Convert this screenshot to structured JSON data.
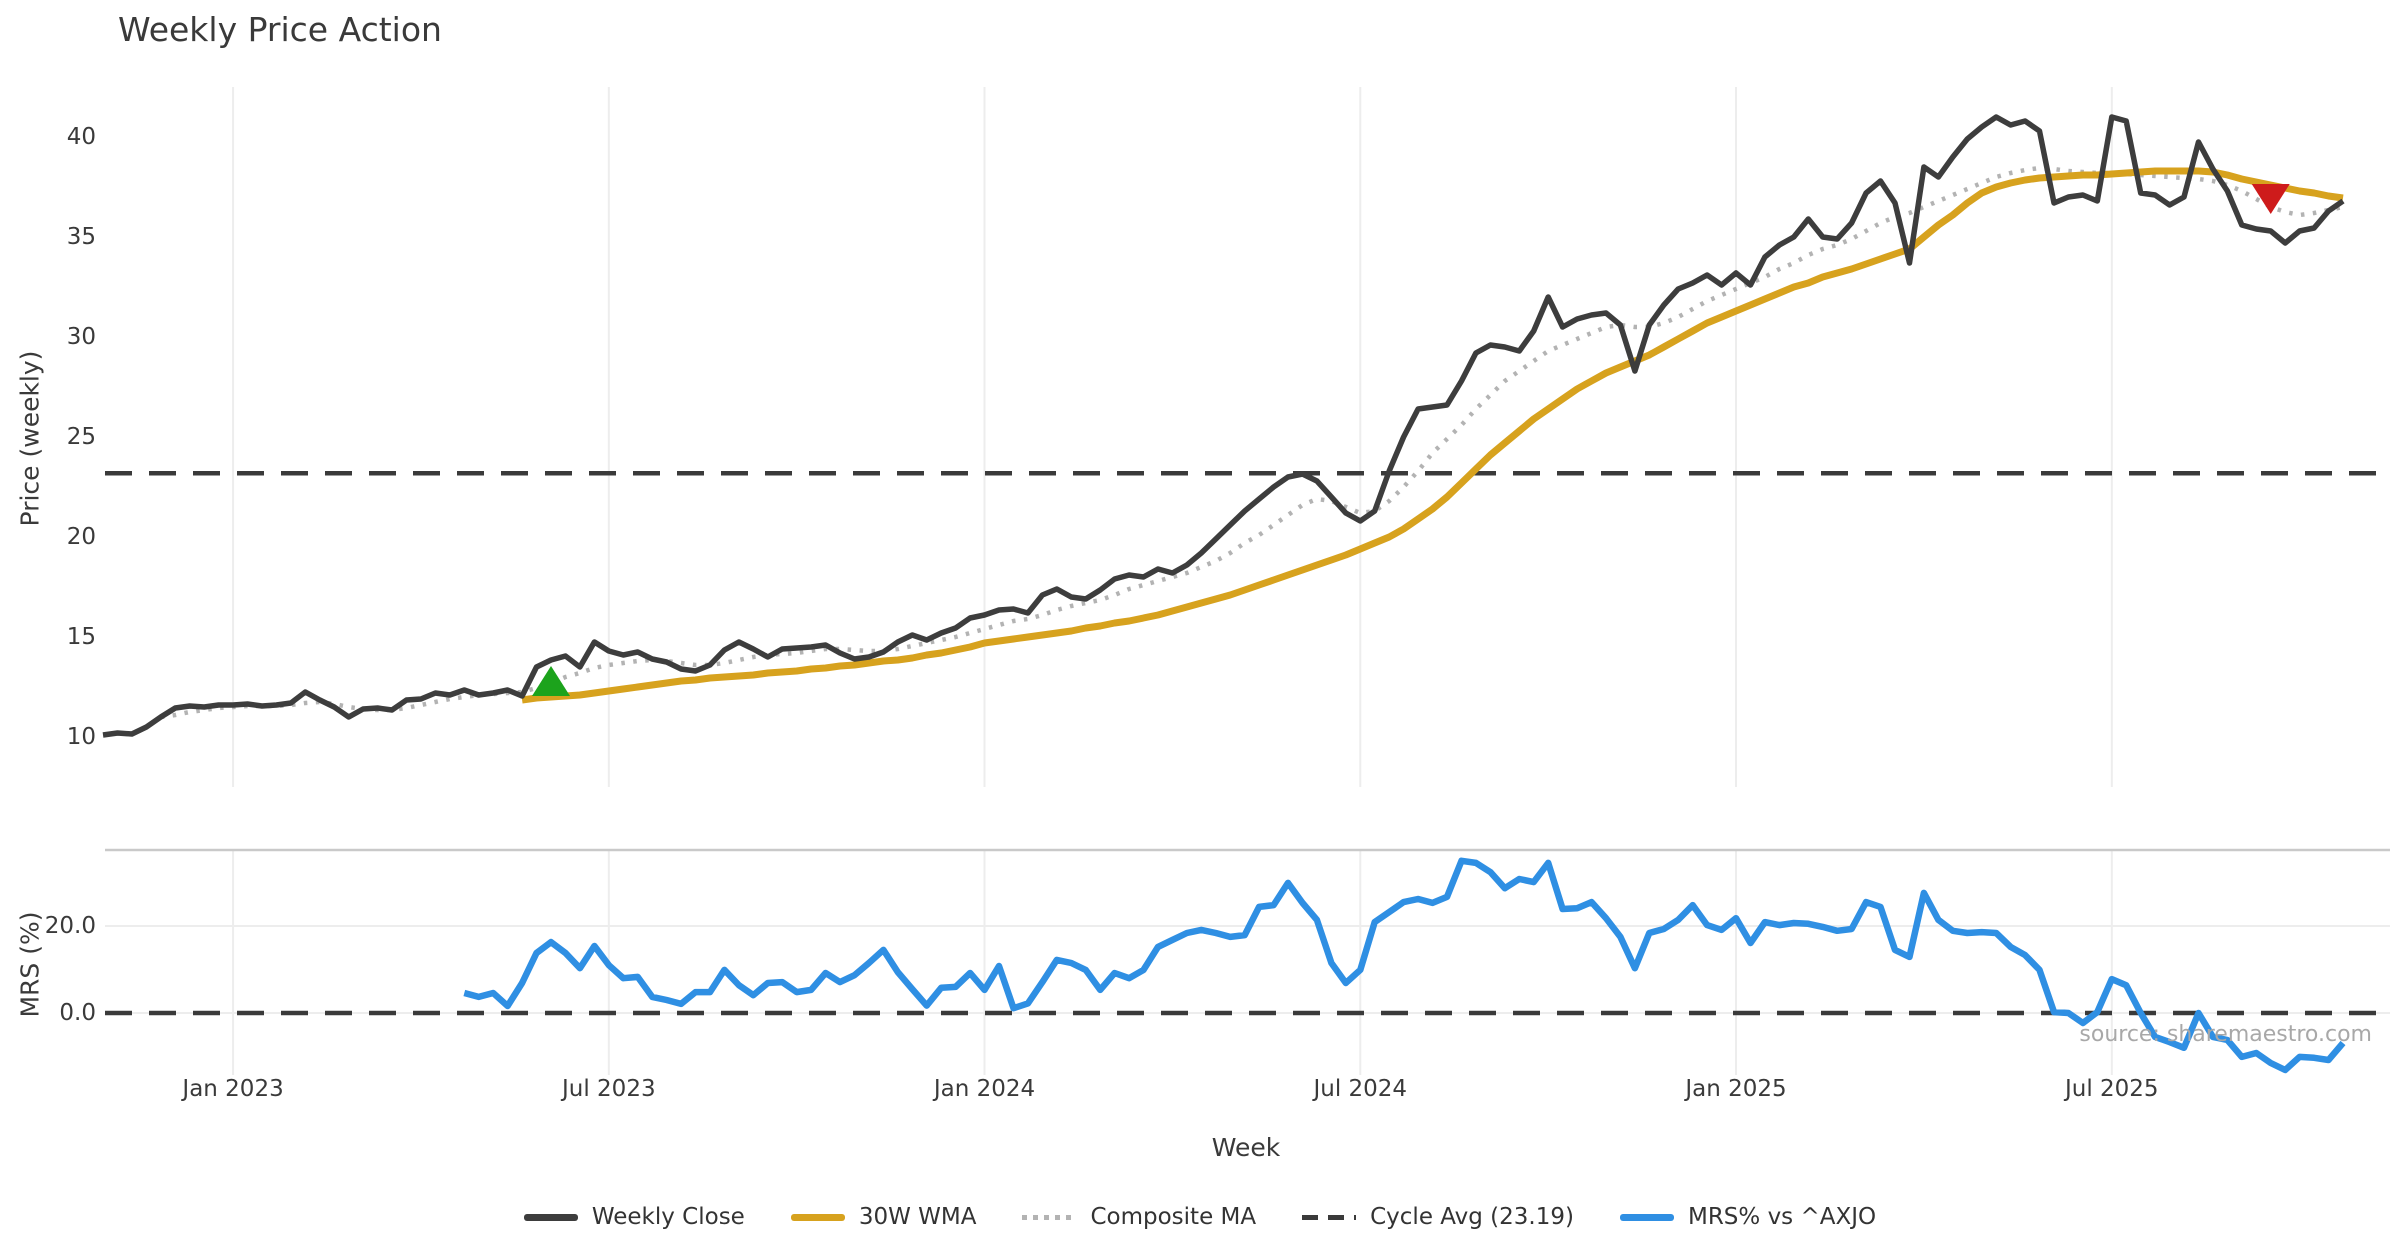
{
  "title": "Weekly Price Action",
  "source_note": "source: sharemaestro.com",
  "colors": {
    "weekly_close": "#3d3d3d",
    "wma": "#d7a21e",
    "composite": "#b3b3b3",
    "cycle_avg": "#3a3a3a",
    "mrs": "#2f8fe3",
    "grid": "#ededed",
    "panel_border": "#c9c9c9",
    "marker_up": "#1ca31c",
    "marker_down": "#ce1b1b",
    "tick_text": "#3a3a3a",
    "source_text": "#a8a8a8"
  },
  "chart_data": [
    {
      "type": "line",
      "panel": "price",
      "title": "Weekly Price Action",
      "xlabel": "Week",
      "ylabel": "Price (weekly)",
      "x_unit": "weeks",
      "x_total_weeks": 156,
      "x_tick_labels": [
        "Jan 2023",
        "Jul 2023",
        "Jan 2024",
        "Jul 2024",
        "Jan 2025",
        "Jul 2025"
      ],
      "x_tick_week_index": [
        9,
        35,
        61,
        87,
        113,
        139
      ],
      "y_ticks": [
        10,
        15,
        20,
        25,
        30,
        35,
        40
      ],
      "ylim": [
        7.5,
        42.5
      ],
      "grid": "vertical-only",
      "legend_position": "bottom-center",
      "series": [
        {
          "name": "Weekly Close",
          "start_week": 0,
          "values": [
            10.1,
            10.2,
            10.15,
            10.5,
            11.0,
            11.45,
            11.55,
            11.5,
            11.6,
            11.6,
            11.65,
            11.55,
            11.6,
            11.7,
            12.25,
            11.85,
            11.5,
            11.0,
            11.4,
            11.45,
            11.35,
            11.85,
            11.9,
            12.2,
            12.1,
            12.35,
            12.1,
            12.2,
            12.35,
            12.05,
            13.5,
            13.85,
            14.05,
            13.5,
            14.75,
            14.3,
            14.1,
            14.25,
            13.9,
            13.75,
            13.4,
            13.3,
            13.6,
            14.35,
            14.75,
            14.4,
            14.0,
            14.4,
            14.45,
            14.5,
            14.6,
            14.2,
            13.9,
            14.0,
            14.25,
            14.75,
            15.1,
            14.85,
            15.2,
            15.45,
            15.95,
            16.1,
            16.35,
            16.4,
            16.2,
            17.1,
            17.4,
            17.0,
            16.9,
            17.35,
            17.9,
            18.1,
            18.0,
            18.4,
            18.2,
            18.6,
            19.2,
            19.9,
            20.6,
            21.3,
            21.9,
            22.5,
            23.0,
            23.15,
            22.8,
            22.0,
            21.2,
            20.8,
            21.3,
            23.3,
            25.0,
            26.4,
            26.5,
            26.6,
            27.8,
            29.2,
            29.6,
            29.5,
            29.3,
            30.3,
            32.0,
            30.5,
            30.9,
            31.1,
            31.2,
            30.6,
            28.3,
            30.6,
            31.6,
            32.4,
            32.7,
            33.1,
            32.6,
            33.2,
            32.6,
            34.0,
            34.6,
            35.0,
            35.9,
            35.0,
            34.9,
            35.7,
            37.2,
            37.8,
            36.7,
            33.7,
            38.5,
            38.0,
            39.0,
            39.9,
            40.5,
            41.0,
            40.6,
            40.8,
            40.3,
            36.7,
            37.0,
            37.1,
            36.8,
            41.0,
            40.8,
            37.2,
            37.1,
            36.6,
            37.0,
            39.75,
            38.4,
            37.3,
            35.6,
            35.4,
            35.3,
            34.7,
            35.3,
            35.45,
            36.3,
            36.8
          ]
        },
        {
          "name": "30W WMA",
          "start_week": 29,
          "values": [
            11.85,
            11.95,
            12.0,
            12.05,
            12.1,
            12.2,
            12.3,
            12.4,
            12.5,
            12.6,
            12.7,
            12.8,
            12.85,
            12.95,
            13.0,
            13.05,
            13.1,
            13.2,
            13.25,
            13.3,
            13.4,
            13.45,
            13.55,
            13.6,
            13.7,
            13.8,
            13.85,
            13.95,
            14.1,
            14.2,
            14.35,
            14.5,
            14.7,
            14.8,
            14.9,
            15.0,
            15.1,
            15.2,
            15.3,
            15.45,
            15.55,
            15.7,
            15.8,
            15.95,
            16.1,
            16.3,
            16.5,
            16.7,
            16.9,
            17.1,
            17.35,
            17.6,
            17.85,
            18.1,
            18.35,
            18.6,
            18.85,
            19.1,
            19.4,
            19.7,
            20.0,
            20.4,
            20.9,
            21.4,
            22.0,
            22.7,
            23.4,
            24.1,
            24.7,
            25.3,
            25.9,
            26.4,
            26.9,
            27.4,
            27.8,
            28.2,
            28.5,
            28.8,
            29.1,
            29.5,
            29.9,
            30.3,
            30.7,
            31.0,
            31.3,
            31.6,
            31.9,
            32.2,
            32.5,
            32.7,
            33.0,
            33.2,
            33.4,
            33.65,
            33.9,
            34.15,
            34.4,
            35.0,
            35.6,
            36.1,
            36.7,
            37.2,
            37.5,
            37.7,
            37.85,
            37.95,
            38.0,
            38.05,
            38.1,
            38.1,
            38.15,
            38.2,
            38.25,
            38.3,
            38.3,
            38.3,
            38.3,
            38.25,
            38.1,
            37.9,
            37.75,
            37.6,
            37.45,
            37.3,
            37.2,
            37.05,
            36.95
          ]
        },
        {
          "name": "Composite MA",
          "start_week": 4,
          "values": [
            11.0,
            11.1,
            11.25,
            11.35,
            11.45,
            11.5,
            11.55,
            11.55,
            11.55,
            11.6,
            11.7,
            11.75,
            11.65,
            11.5,
            11.4,
            11.35,
            11.35,
            11.45,
            11.6,
            11.75,
            11.9,
            12.0,
            12.1,
            12.15,
            12.2,
            12.25,
            12.45,
            12.7,
            13.0,
            13.2,
            13.45,
            13.6,
            13.7,
            13.8,
            13.85,
            13.8,
            13.7,
            13.6,
            13.6,
            13.7,
            13.85,
            14.0,
            14.1,
            14.15,
            14.2,
            14.3,
            14.4,
            14.4,
            14.35,
            14.3,
            14.3,
            14.4,
            14.55,
            14.7,
            14.85,
            15.0,
            15.2,
            15.4,
            15.6,
            15.8,
            15.9,
            16.1,
            16.35,
            16.55,
            16.7,
            16.85,
            17.1,
            17.4,
            17.6,
            17.8,
            18.0,
            18.2,
            18.5,
            18.8,
            19.2,
            19.7,
            20.1,
            20.6,
            21.1,
            21.6,
            21.9,
            21.8,
            21.5,
            21.2,
            21.3,
            21.8,
            22.5,
            23.3,
            24.2,
            24.9,
            25.6,
            26.4,
            27.1,
            27.8,
            28.3,
            28.8,
            29.3,
            29.6,
            29.9,
            30.2,
            30.5,
            30.6,
            30.5,
            30.5,
            30.7,
            31.0,
            31.4,
            31.8,
            32.1,
            32.4,
            32.7,
            33.0,
            33.4,
            33.7,
            34.1,
            34.4,
            34.6,
            34.9,
            35.3,
            35.7,
            36.0,
            36.2,
            36.5,
            36.8,
            37.1,
            37.4,
            37.7,
            38.0,
            38.2,
            38.35,
            38.45,
            38.4,
            38.3,
            38.25,
            38.2,
            38.2,
            38.15,
            38.1,
            38.05,
            38.0,
            37.95,
            37.9,
            37.8,
            37.6,
            37.3,
            36.9,
            36.5,
            36.25,
            36.1,
            36.2,
            36.35,
            36.5
          ]
        },
        {
          "name": "Cycle Avg (23.19)",
          "type": "hline",
          "value": 23.19
        }
      ],
      "markers": [
        {
          "shape": "triangle-up",
          "meaning": "buy-signal",
          "week": 31,
          "value": 12.8
        },
        {
          "shape": "triangle-down",
          "meaning": "sell-signal",
          "week": 150,
          "value": 36.9
        }
      ]
    },
    {
      "type": "line",
      "panel": "mrs",
      "ylabel": "MRS (%)",
      "y_ticks": [
        {
          "label": "20.0",
          "value": 20
        },
        {
          "label": "0.0",
          "value": 0
        }
      ],
      "ylim": [
        -14.5,
        37.5
      ],
      "zero_line": 0,
      "series": [
        {
          "name": "MRS% vs ^AXJO",
          "start_week": 25,
          "values": [
            4.6,
            3.7,
            4.6,
            1.6,
            6.9,
            13.8,
            16.3,
            13.8,
            10.3,
            15.4,
            11.0,
            8.0,
            8.3,
            3.7,
            3.0,
            2.1,
            4.8,
            4.8,
            9.9,
            6.4,
            4.1,
            6.9,
            7.1,
            4.8,
            5.3,
            9.2,
            7.1,
            8.7,
            11.5,
            14.5,
            9.4,
            5.5,
            1.7,
            5.8,
            6.0,
            9.2,
            5.3,
            10.8,
            1.1,
            2.2,
            7.1,
            12.2,
            11.5,
            9.9,
            5.3,
            9.2,
            8.0,
            9.9,
            15.2,
            16.8,
            18.4,
            19.1,
            18.4,
            17.5,
            17.9,
            24.4,
            24.8,
            29.9,
            25.3,
            21.4,
            11.5,
            6.9,
            9.9,
            20.9,
            23.2,
            25.5,
            26.2,
            25.3,
            26.7,
            35.0,
            34.5,
            32.4,
            28.7,
            30.8,
            30.1,
            34.5,
            23.9,
            24.1,
            25.5,
            21.8,
            17.5,
            10.3,
            18.4,
            19.3,
            21.4,
            24.8,
            20.2,
            19.1,
            21.8,
            16.1,
            20.9,
            20.2,
            20.7,
            20.5,
            19.8,
            18.9,
            19.3,
            25.5,
            24.4,
            14.5,
            12.9,
            27.6,
            21.4,
            18.9,
            18.4,
            18.6,
            18.4,
            15.2,
            13.3,
            9.9,
            0.2,
            0.0,
            -2.3,
            0.2,
            7.8,
            6.4,
            0.0,
            -5.5,
            -6.7,
            -8.0,
            0.0,
            -5.5,
            -6.2,
            -10.1,
            -9.2,
            -11.5,
            -13.1,
            -10.1,
            -10.3,
            -10.8,
            -6.9
          ]
        }
      ]
    }
  ],
  "legend": {
    "items": [
      {
        "label": "Weekly Close",
        "swatch": "solid",
        "color": "#3d3d3d"
      },
      {
        "label": "30W WMA",
        "swatch": "solid",
        "color": "#d7a21e"
      },
      {
        "label": "Composite MA",
        "swatch": "dotted",
        "color": "#b3b3b3"
      },
      {
        "label": "Cycle Avg (23.19)",
        "swatch": "dashed",
        "color": "#3a3a3a"
      },
      {
        "label": "MRS% vs ^AXJO",
        "swatch": "solid",
        "color": "#2f8fe3"
      }
    ]
  }
}
